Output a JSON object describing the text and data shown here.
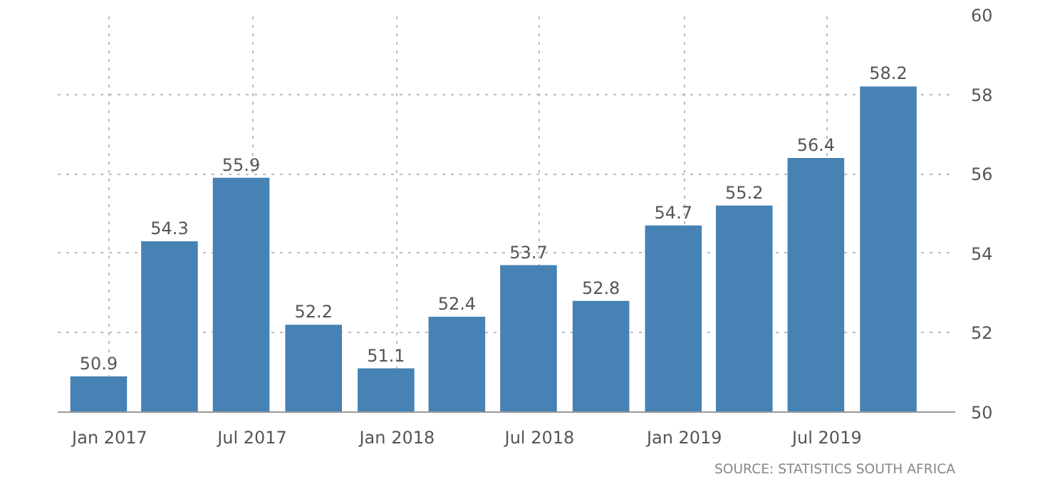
{
  "chart_data": {
    "type": "bar",
    "x": [
      "2017-01-01",
      "2017-04-01",
      "2017-07-01",
      "2017-10-01",
      "2018-01-01",
      "2018-04-01",
      "2018-07-01",
      "2018-10-01",
      "2019-01-01",
      "2019-04-01",
      "2019-07-01",
      "2019-10-01"
    ],
    "values": [
      50.9,
      54.3,
      55.9,
      52.2,
      51.1,
      52.4,
      53.7,
      52.8,
      54.7,
      55.2,
      56.4,
      58.2
    ],
    "color": "#4682b4",
    "data_labels": true,
    "xlim": [
      "2016-11-10",
      "2019-12-25"
    ],
    "xticks": [
      {
        "value": "2017-01-15",
        "label": "Jan 2017"
      },
      {
        "value": "2017-07-15",
        "label": "Jul 2017"
      },
      {
        "value": "2018-01-15",
        "label": "Jan 2018"
      },
      {
        "value": "2018-07-15",
        "label": "Jul 2018"
      },
      {
        "value": "2019-01-15",
        "label": "Jan 2019"
      },
      {
        "value": "2019-07-15",
        "label": "Jul 2019"
      }
    ],
    "ylim": [
      50,
      60
    ],
    "yticks": [
      50,
      52,
      54,
      56,
      58,
      60
    ],
    "grid": true,
    "annotations": [
      "SOURCE: STATISTICS SOUTH AFRICA"
    ]
  }
}
